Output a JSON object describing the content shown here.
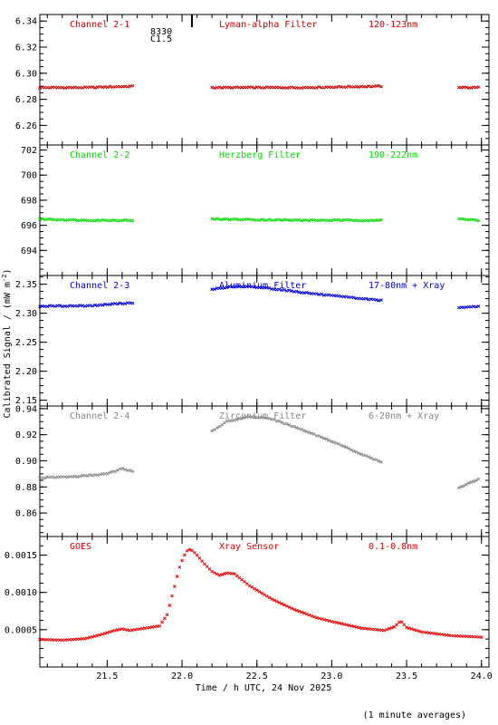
{
  "figure": {
    "ylabel": "Calibrated Signal / (mW m",
    "ylabel_sup": "-2",
    "ylabel_close": ")",
    "xlabel": "Time / h UTC, 24 Nov 2025",
    "footnote": "(1 minute averages)",
    "xlim": [
      21.05,
      24.05
    ],
    "xticks": [
      21.5,
      22.0,
      22.5,
      23.0,
      23.5,
      24.0
    ],
    "xtick_labels": [
      "21.5",
      "22.0",
      "22.5",
      "23.0",
      "23.5",
      "24.0"
    ]
  },
  "chart_data": [
    {
      "type": "scatter",
      "label_left": "Channel 2-1",
      "label_mid": "Lyman-alpha Filter",
      "label_right": "120-123nm",
      "color": "#cc0000",
      "ylim": [
        6.245,
        6.345
      ],
      "yticks": [
        6.26,
        6.28,
        6.3,
        6.32,
        6.34
      ],
      "ytick_labels": [
        "6.26",
        "6.28",
        "6.30",
        "6.32",
        "6.34"
      ],
      "annotation": {
        "lines": [
          "8330",
          "C1.5"
        ],
        "x": 22.03,
        "color": "#000000"
      },
      "segments": [
        {
          "x": [
            21.05,
            21.35,
            21.67
          ],
          "y": [
            6.289,
            6.289,
            6.29
          ]
        },
        {
          "x": [
            22.2,
            22.8,
            23.33
          ],
          "y": [
            6.289,
            6.289,
            6.29
          ]
        },
        {
          "x": [
            23.85,
            23.98
          ],
          "y": [
            6.289,
            6.289
          ]
        }
      ]
    },
    {
      "type": "scatter",
      "label_left": "Channel 2-2",
      "label_mid": "Herzberg Filter",
      "label_right": "190-222nm",
      "color": "#00dd00",
      "ylim": [
        692.0,
        702.4
      ],
      "yticks": [
        694,
        696,
        698,
        700,
        702
      ],
      "ytick_labels": [
        "694",
        "696",
        "698",
        "700",
        "702"
      ],
      "segments": [
        {
          "x": [
            21.05,
            21.35,
            21.67
          ],
          "y": [
            696.5,
            696.4,
            696.4
          ]
        },
        {
          "x": [
            22.2,
            22.8,
            23.33
          ],
          "y": [
            696.5,
            696.4,
            696.4
          ]
        },
        {
          "x": [
            23.85,
            23.98
          ],
          "y": [
            696.5,
            696.4
          ]
        }
      ]
    },
    {
      "type": "scatter",
      "label_left": "Channel 2-3",
      "label_mid": "Aluminium Filter",
      "label_right": "17-80nm + Xray",
      "color": "#0000dd",
      "ylim": [
        2.14,
        2.365
      ],
      "yticks": [
        2.15,
        2.2,
        2.25,
        2.3,
        2.35
      ],
      "ytick_labels": [
        "2.15",
        "2.20",
        "2.25",
        "2.30",
        "2.35"
      ],
      "segments": [
        {
          "x": [
            21.05,
            21.4,
            21.6,
            21.67
          ],
          "y": [
            2.312,
            2.313,
            2.317,
            2.318
          ]
        },
        {
          "x": [
            22.2,
            22.3,
            22.4,
            22.55,
            22.8,
            23.0,
            23.33
          ],
          "y": [
            2.341,
            2.345,
            2.346,
            2.344,
            2.336,
            2.33,
            2.322
          ]
        },
        {
          "x": [
            23.85,
            23.98
          ],
          "y": [
            2.309,
            2.312
          ]
        }
      ]
    },
    {
      "type": "scatter",
      "label_left": "Channel 2-4",
      "label_mid": "Zirconium Filter",
      "label_right": "6-20nm + Xray",
      "color": "#888888",
      "ylim": [
        0.842,
        0.942
      ],
      "yticks": [
        0.86,
        0.88,
        0.9,
        0.92,
        0.94
      ],
      "ytick_labels": [
        "0.86",
        "0.88",
        "0.90",
        "0.92",
        "0.94"
      ],
      "segments": [
        {
          "x": [
            21.05,
            21.3,
            21.5,
            21.6,
            21.67
          ],
          "y": [
            0.887,
            0.888,
            0.89,
            0.894,
            0.892
          ]
        },
        {
          "x": [
            22.2,
            22.3,
            22.45,
            22.6,
            22.8,
            23.0,
            23.2,
            23.33
          ],
          "y": [
            0.923,
            0.93,
            0.934,
            0.932,
            0.924,
            0.915,
            0.905,
            0.899
          ]
        },
        {
          "x": [
            23.85,
            23.92,
            23.98
          ],
          "y": [
            0.879,
            0.883,
            0.886
          ]
        }
      ]
    },
    {
      "type": "scatter",
      "label_left": "GOES",
      "label_mid": "Xray Sensor",
      "label_right": "0.1-0.8nm",
      "color": "#ee0000",
      "ylim": [
        0.0,
        0.00175
      ],
      "yticks": [
        0.0005,
        0.001,
        0.0015
      ],
      "ytick_labels": [
        "0.0005",
        "0.0010",
        "0.0015"
      ],
      "points": [
        [
          21.05,
          0.00037
        ],
        [
          21.2,
          0.00036
        ],
        [
          21.35,
          0.00038
        ],
        [
          21.45,
          0.00043
        ],
        [
          21.55,
          0.00049
        ],
        [
          21.6,
          0.00051
        ],
        [
          21.65,
          0.00049
        ],
        [
          21.75,
          0.00052
        ],
        [
          21.85,
          0.00055
        ],
        [
          21.9,
          0.0007
        ],
        [
          21.95,
          0.00108
        ],
        [
          21.98,
          0.00132
        ],
        [
          22.01,
          0.00148
        ],
        [
          22.04,
          0.00158
        ],
        [
          22.07,
          0.00156
        ],
        [
          22.1,
          0.0015
        ],
        [
          22.15,
          0.00138
        ],
        [
          22.2,
          0.00128
        ],
        [
          22.25,
          0.00123
        ],
        [
          22.3,
          0.00126
        ],
        [
          22.35,
          0.00125
        ],
        [
          22.45,
          0.00109
        ],
        [
          22.6,
          0.00091
        ],
        [
          22.75,
          0.00077
        ],
        [
          22.9,
          0.00066
        ],
        [
          23.0,
          0.00061
        ],
        [
          23.2,
          0.00052
        ],
        [
          23.35,
          0.00049
        ],
        [
          23.42,
          0.00054
        ],
        [
          23.46,
          0.00062
        ],
        [
          23.5,
          0.00053
        ],
        [
          23.6,
          0.00047
        ],
        [
          23.8,
          0.00042
        ],
        [
          24.0,
          0.0004
        ]
      ]
    }
  ]
}
